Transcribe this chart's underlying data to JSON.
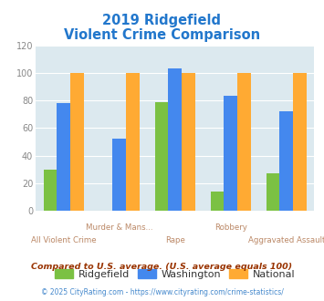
{
  "title_line1": "2019 Ridgefield",
  "title_line2": "Violent Crime Comparison",
  "title_color": "#2277cc",
  "categories": [
    "All Violent Crime",
    "Murder & Mans...",
    "Rape",
    "Robbery",
    "Aggravated Assault"
  ],
  "ridgefield": [
    30,
    0,
    79,
    14,
    27
  ],
  "washington": [
    78,
    52,
    103,
    83,
    72
  ],
  "national": [
    100,
    100,
    100,
    100,
    100
  ],
  "ridgefield_color": "#7bc143",
  "washington_color": "#4488ee",
  "national_color": "#ffaa33",
  "ylim": [
    0,
    120
  ],
  "yticks": [
    0,
    20,
    40,
    60,
    80,
    100,
    120
  ],
  "plot_bg": "#dce9ef",
  "legend_labels": [
    "Ridgefield",
    "Washington",
    "National"
  ],
  "legend_text_color": "#333333",
  "footnote1": "Compared to U.S. average. (U.S. average equals 100)",
  "footnote2": "© 2025 CityRating.com - https://www.cityrating.com/crime-statistics/",
  "footnote1_color": "#993300",
  "footnote2_color": "#4488cc",
  "xlabel_color": "#bb8866",
  "xlabel_upper_color": "#bb8866"
}
